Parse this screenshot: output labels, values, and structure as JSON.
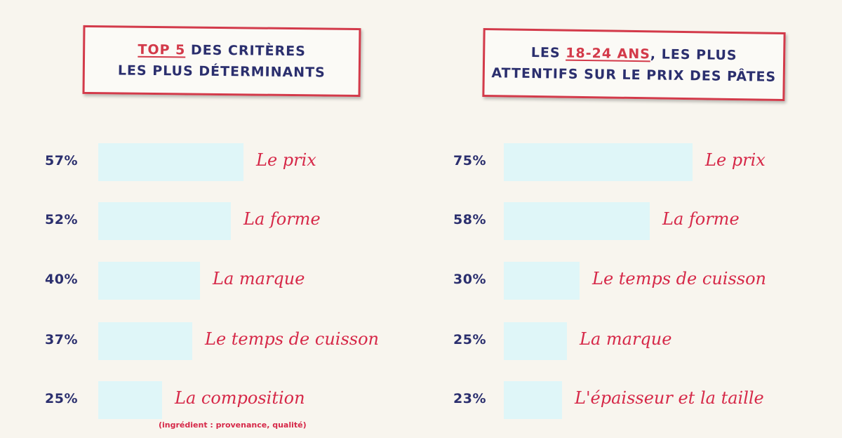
{
  "left": {
    "title_hl": "TOP 5",
    "title_rest": " DES CRITÈRES",
    "title_line2": "LES PLUS DÉTERMINANTS",
    "note": "(ingrédient : provenance, qualité)"
  },
  "right": {
    "title_pre": "LES ",
    "title_hl": "18-24 ANS",
    "title_rest": ", LES PLUS",
    "title_line2": "ATTENTIFS SUR LE PRIX DES PÂTES"
  },
  "chart_data": [
    {
      "type": "bar",
      "categories": [
        "Le prix",
        "La forme",
        "La marque",
        "Le temps de cuisson",
        "La composition"
      ],
      "values": [
        57,
        52,
        40,
        37,
        25
      ],
      "value_labels": [
        "57%",
        "52%",
        "40%",
        "37%",
        "25%"
      ],
      "title": "TOP 5 DES CRITÈRES LES PLUS DÉTERMINANTS",
      "orientation": "horizontal",
      "xlim": [
        0,
        100
      ],
      "grid": false,
      "colors": {
        "bar": "#dff6f8",
        "label": "#d62848",
        "value": "#2b2f6e"
      }
    },
    {
      "type": "bar",
      "categories": [
        "Le prix",
        "La forme",
        "Le temps de cuisson",
        "La marque",
        "L'épaisseur et la taille"
      ],
      "values": [
        75,
        58,
        30,
        25,
        23
      ],
      "value_labels": [
        "75%",
        "58%",
        "30%",
        "25%",
        "23%"
      ],
      "title": "LES 18-24 ANS, LES PLUS ATTENTIFS SUR LE PRIX DES PÂTES",
      "orientation": "horizontal",
      "xlim": [
        0,
        100
      ],
      "grid": false,
      "colors": {
        "bar": "#dff6f8",
        "label": "#d62848",
        "value": "#2b2f6e"
      }
    }
  ]
}
